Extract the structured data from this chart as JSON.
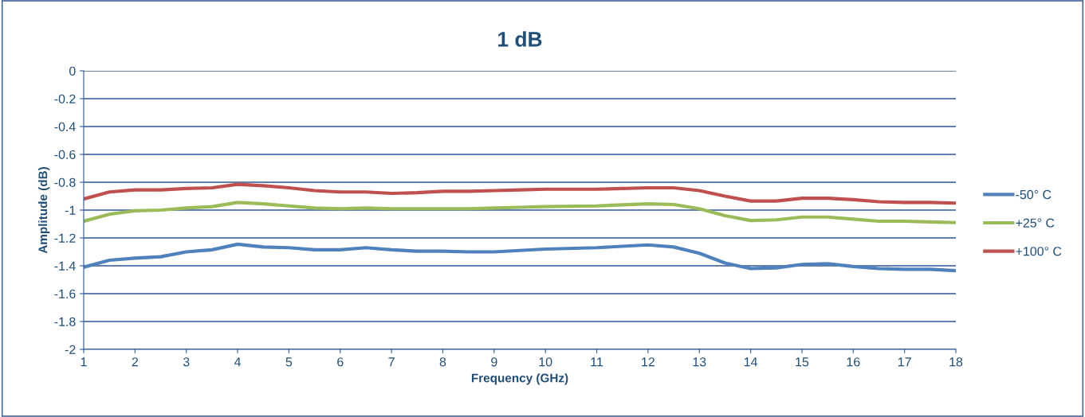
{
  "chart_data": {
    "type": "line",
    "title": "1 dB",
    "xlabel": "Frequency (GHz)",
    "ylabel": "Amplitude (dB)",
    "x": [
      1,
      1.5,
      2,
      2.5,
      3,
      3.5,
      4,
      4.5,
      5,
      5.5,
      6,
      6.5,
      7,
      7.5,
      8,
      8.5,
      9,
      9.5,
      10,
      11,
      12,
      12.5,
      13,
      13.5,
      14,
      14.5,
      15,
      15.5,
      16,
      16.5,
      17,
      17.5,
      18
    ],
    "series": [
      {
        "name": "-50° C",
        "color": "#4f81bd",
        "values": [
          -1.41,
          -1.36,
          -1.345,
          -1.335,
          -1.3,
          -1.285,
          -1.245,
          -1.265,
          -1.27,
          -1.285,
          -1.285,
          -1.27,
          -1.285,
          -1.295,
          -1.295,
          -1.3,
          -1.3,
          -1.29,
          -1.28,
          -1.27,
          -1.25,
          -1.265,
          -1.31,
          -1.38,
          -1.42,
          -1.415,
          -1.39,
          -1.385,
          -1.405,
          -1.42,
          -1.425,
          -1.425,
          -1.435
        ]
      },
      {
        "name": "+25° C",
        "color": "#9bbb59",
        "values": [
          -1.08,
          -1.03,
          -1.005,
          -1.0,
          -0.985,
          -0.975,
          -0.945,
          -0.955,
          -0.97,
          -0.985,
          -0.99,
          -0.985,
          -0.99,
          -0.99,
          -0.99,
          -0.99,
          -0.985,
          -0.98,
          -0.975,
          -0.97,
          -0.955,
          -0.96,
          -0.99,
          -1.04,
          -1.075,
          -1.07,
          -1.05,
          -1.05,
          -1.065,
          -1.08,
          -1.08,
          -1.085,
          -1.09
        ]
      },
      {
        "name": "+100° C",
        "color": "#c0504d",
        "values": [
          -0.92,
          -0.87,
          -0.855,
          -0.855,
          -0.845,
          -0.84,
          -0.815,
          -0.825,
          -0.84,
          -0.86,
          -0.87,
          -0.87,
          -0.88,
          -0.875,
          -0.865,
          -0.865,
          -0.86,
          -0.855,
          -0.85,
          -0.85,
          -0.84,
          -0.84,
          -0.86,
          -0.9,
          -0.935,
          -0.935,
          -0.915,
          -0.915,
          -0.925,
          -0.94,
          -0.945,
          -0.945,
          -0.95
        ]
      }
    ],
    "xlim": [
      1,
      18
    ],
    "xticks": [
      1,
      2,
      3,
      4,
      5,
      6,
      7,
      8,
      9,
      10,
      11,
      12,
      13,
      14,
      15,
      16,
      17,
      18
    ],
    "ylim": [
      -2,
      0
    ],
    "yticks": [
      0,
      -0.2,
      -0.4,
      -0.6,
      -0.8,
      -1,
      -1.2,
      -1.4,
      -1.6,
      -1.8,
      -2
    ],
    "grid": "y",
    "legend": "right",
    "marker": "none",
    "line_style": "solid"
  }
}
